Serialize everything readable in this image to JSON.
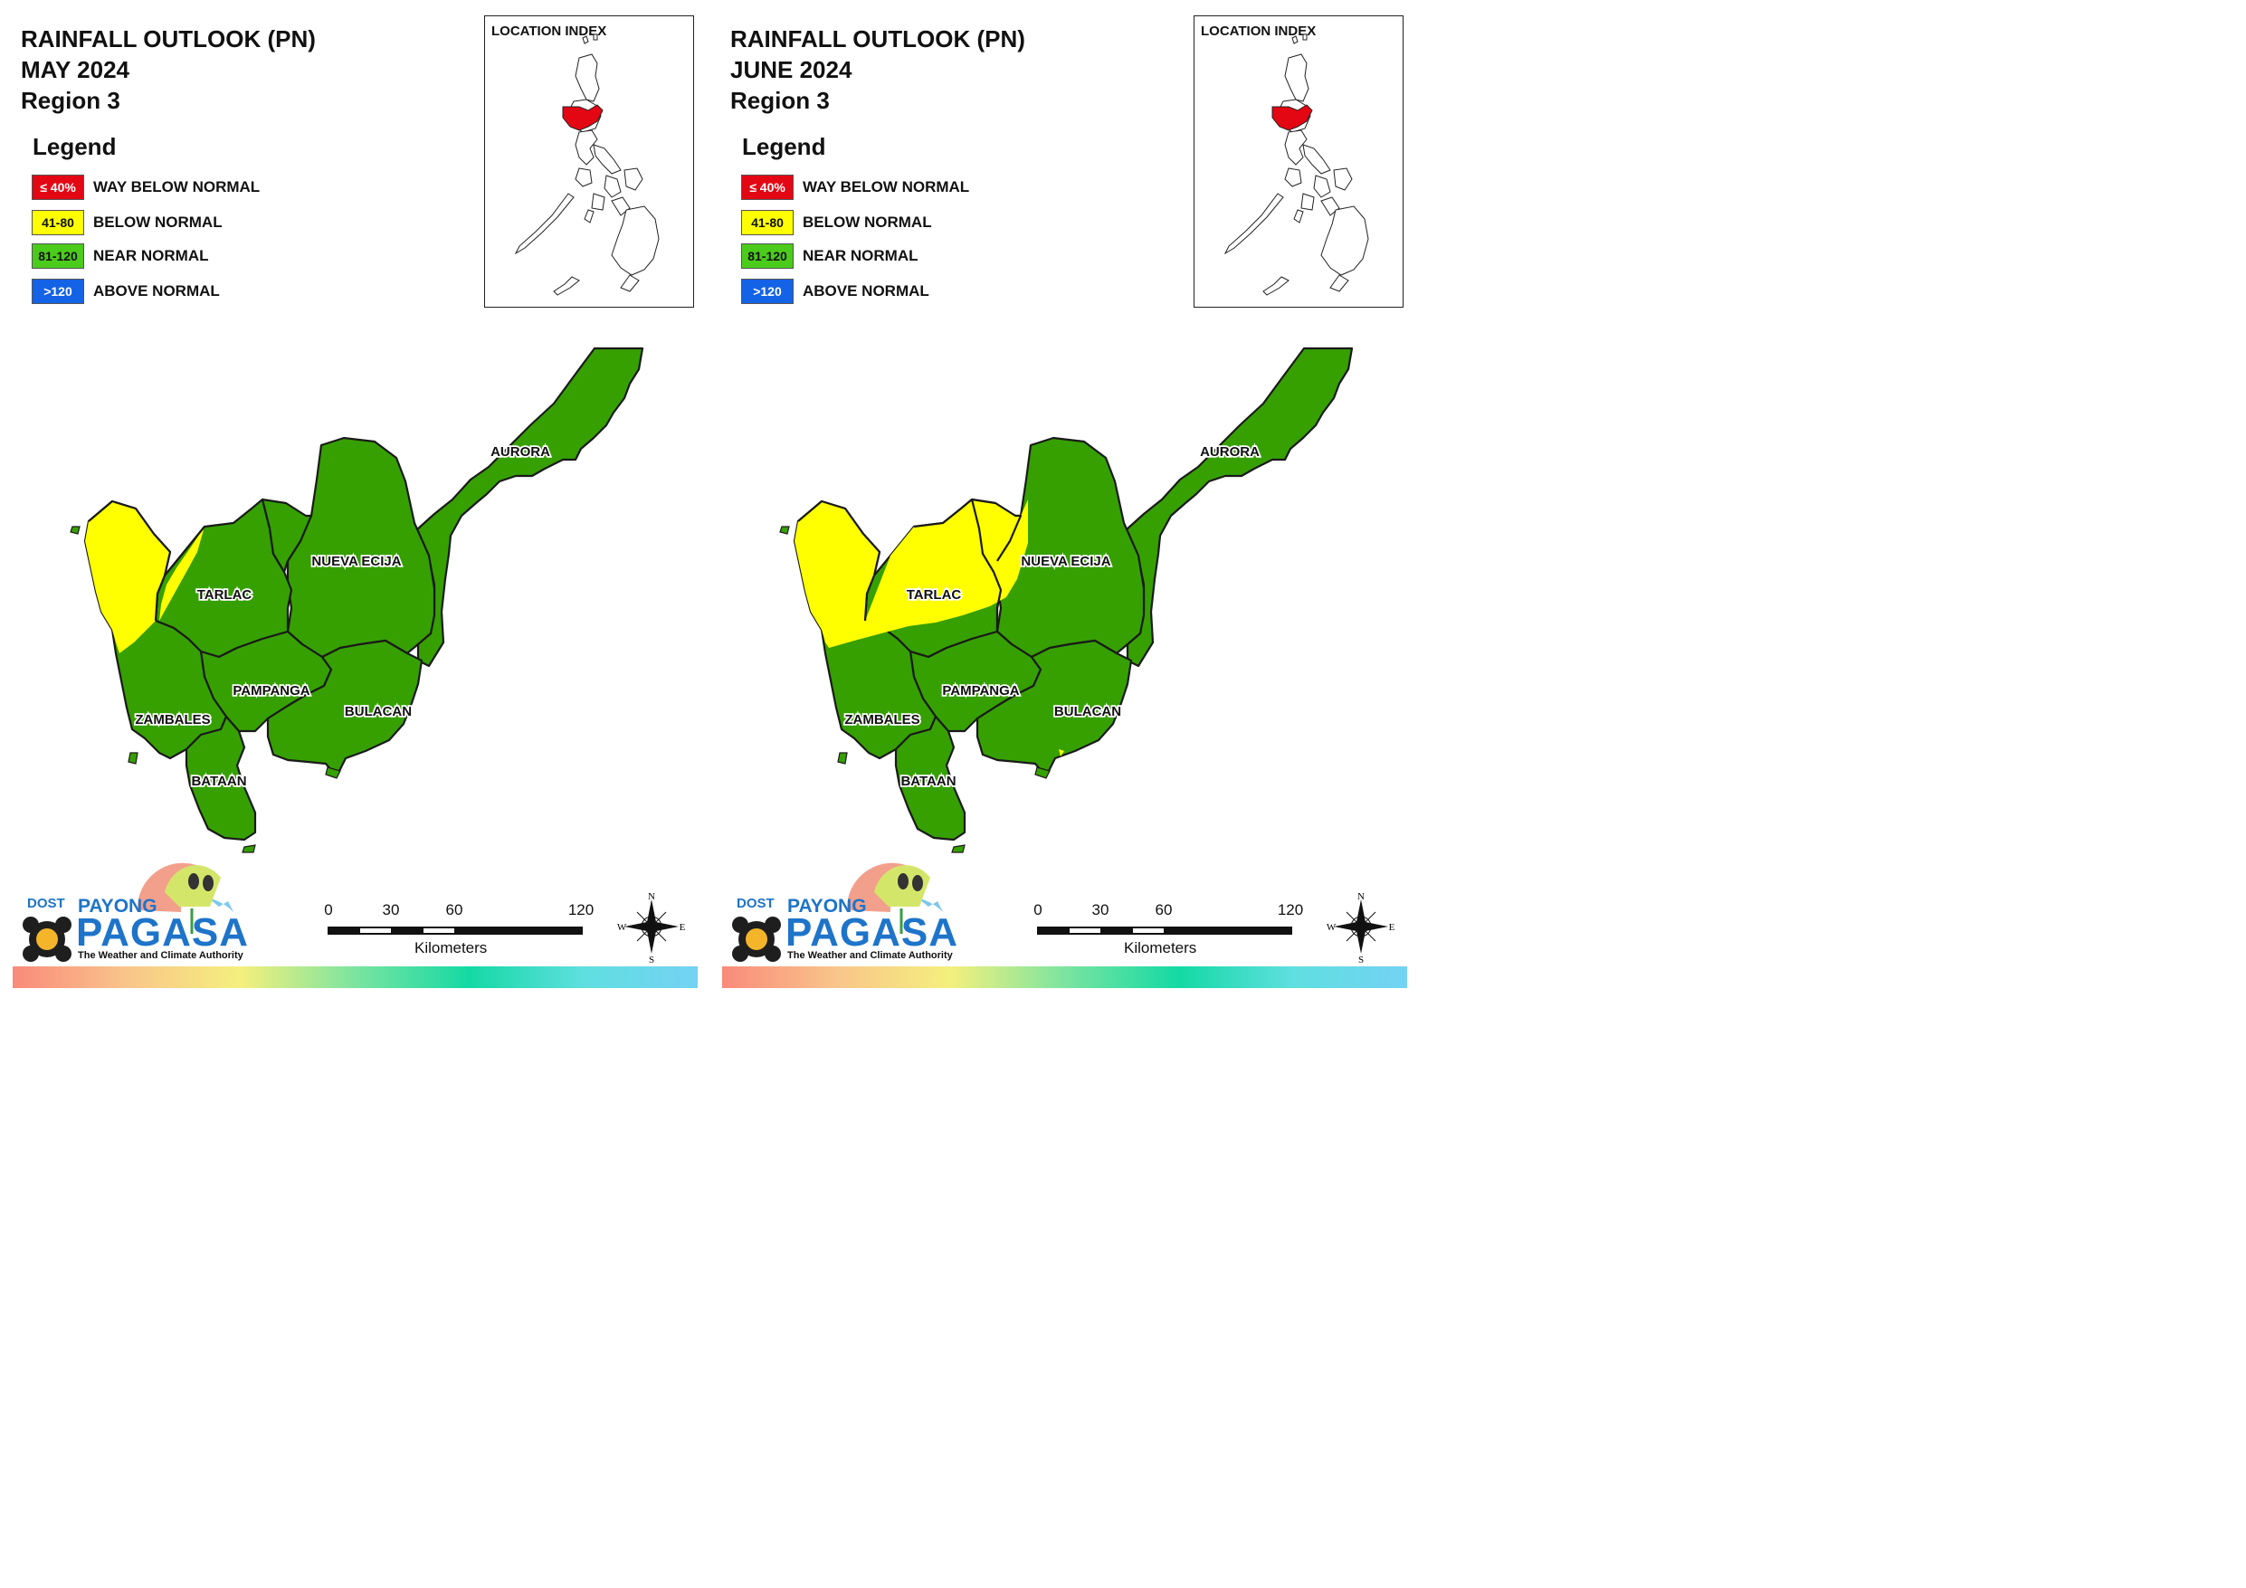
{
  "panels": [
    {
      "title_line1": "RAINFALL OUTLOOK (PN)",
      "title_line2": "MAY 2024",
      "title_line3": "Region 3",
      "legend_title": "Legend",
      "legend": [
        {
          "range": "≤ 40%",
          "label": "WAY BELOW NORMAL",
          "color": "#e30613"
        },
        {
          "range": "41-80",
          "label": "BELOW NORMAL",
          "color": "#ffff00"
        },
        {
          "range": "81-120",
          "label": "NEAR NORMAL",
          "color": "#38b000"
        },
        {
          "range": ">120",
          "label": "ABOVE NORMAL",
          "color": "#1462e6"
        }
      ],
      "inset_title": "LOCATION INDEX",
      "provinces": [
        {
          "name": "AURORA",
          "category": "NEAR NORMAL"
        },
        {
          "name": "NUEVA ECIJA",
          "category": "NEAR NORMAL"
        },
        {
          "name": "TARLAC",
          "category": "NEAR NORMAL (west edge BELOW NORMAL)"
        },
        {
          "name": "PAMPANGA",
          "category": "NEAR NORMAL"
        },
        {
          "name": "BULACAN",
          "category": "NEAR NORMAL"
        },
        {
          "name": "ZAMBALES",
          "category": "NEAR NORMAL (north BELOW NORMAL)"
        },
        {
          "name": "BATAAN",
          "category": "NEAR NORMAL"
        }
      ],
      "scale_ticks": [
        "0",
        "30",
        "60",
        "120"
      ],
      "scale_unit": "Kilometers",
      "compass": {
        "n": "N",
        "e": "E",
        "s": "S",
        "w": "W"
      },
      "logo": {
        "dost": "DOST",
        "payong": "PAYONG",
        "pagasa": "PAGASA",
        "tagline": "The Weather and Climate Authority"
      }
    },
    {
      "title_line1": "RAINFALL OUTLOOK (PN)",
      "title_line2": "JUNE 2024",
      "title_line3": "Region 3",
      "legend_title": "Legend",
      "legend": [
        {
          "range": "≤ 40%",
          "label": "WAY BELOW NORMAL",
          "color": "#e30613"
        },
        {
          "range": "41-80",
          "label": "BELOW NORMAL",
          "color": "#ffff00"
        },
        {
          "range": "81-120",
          "label": "NEAR NORMAL",
          "color": "#38b000"
        },
        {
          "range": ">120",
          "label": "ABOVE NORMAL",
          "color": "#1462e6"
        }
      ],
      "inset_title": "LOCATION INDEX",
      "provinces": [
        {
          "name": "AURORA",
          "category": "NEAR NORMAL"
        },
        {
          "name": "NUEVA ECIJA",
          "category": "NEAR NORMAL (northwest BELOW NORMAL)"
        },
        {
          "name": "TARLAC",
          "category": "BELOW NORMAL"
        },
        {
          "name": "PAMPANGA",
          "category": "NEAR NORMAL"
        },
        {
          "name": "BULACAN",
          "category": "NEAR NORMAL"
        },
        {
          "name": "ZAMBALES",
          "category": "NEAR NORMAL (north BELOW NORMAL)"
        },
        {
          "name": "BATAAN",
          "category": "NEAR NORMAL"
        }
      ],
      "scale_ticks": [
        "0",
        "30",
        "60",
        "120"
      ],
      "scale_unit": "Kilometers",
      "compass": {
        "n": "N",
        "e": "E",
        "s": "S",
        "w": "W"
      },
      "logo": {
        "dost": "DOST",
        "payong": "PAYONG",
        "pagasa": "PAGASA",
        "tagline": "The Weather and Climate Authority"
      }
    }
  ]
}
